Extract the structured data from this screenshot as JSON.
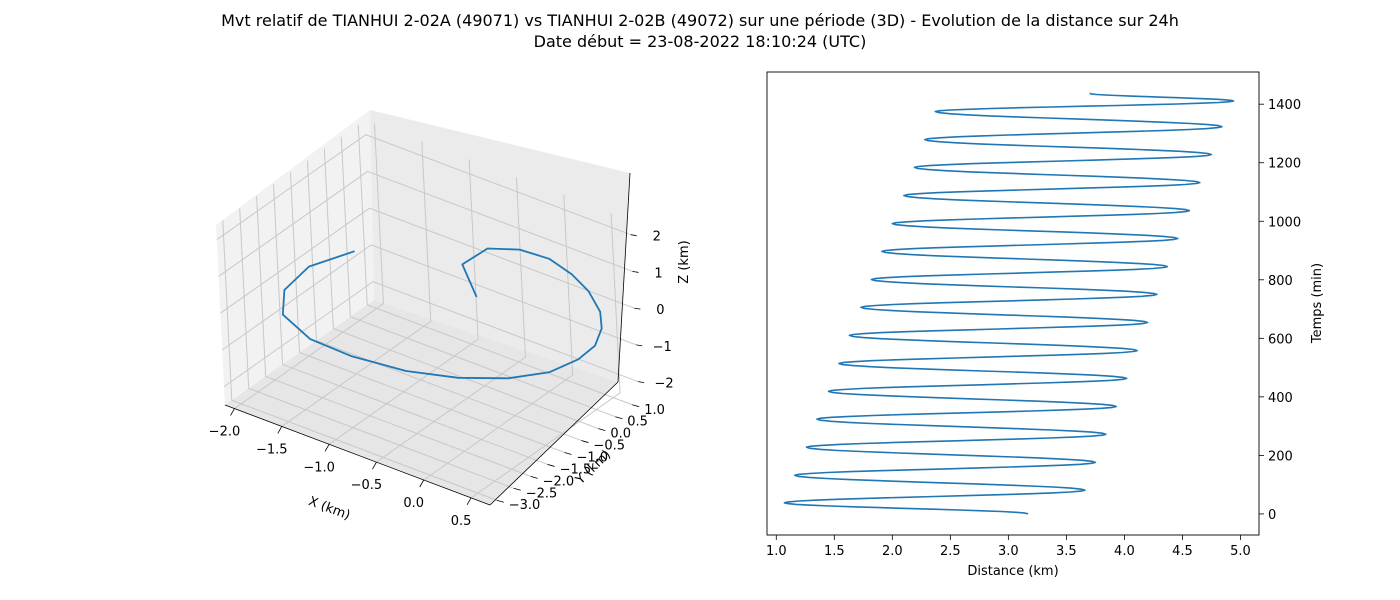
{
  "figure": {
    "title_line1": "Mvt relatif de TIANHUI 2-02A (49071) vs TIANHUI 2-02B (49072) sur une période (3D) - Evolution de la distance sur 24h",
    "title_line2": "Date début = 23-08-2022 18:10:24 (UTC)",
    "line_color": "#1f77b4"
  },
  "chart_data": [
    {
      "type": "line3d",
      "xlabel": "X (km)",
      "ylabel": "Y (km)",
      "zlabel": "Z (km)",
      "xticks": [
        "−2.0",
        "−1.5",
        "−1.0",
        "−0.5",
        "0.0",
        "0.5"
      ],
      "yticks": [
        "−3.0",
        "−2.5",
        "−2.0",
        "−1.5",
        "−1.0",
        "−0.5",
        "0.0",
        "0.5",
        "1.0"
      ],
      "zticks": [
        "−2",
        "−1",
        "0",
        "1",
        "2"
      ],
      "xlim": [
        -2.1,
        0.7
      ],
      "ylim": [
        -3.2,
        1.2
      ],
      "zlim": [
        -2.5,
        2.4
      ],
      "grid": true,
      "series": [
        {
          "points": [
            [
              -0.05,
              -1.3,
              1.2
            ],
            [
              -0.28,
              -1.05,
              1.7
            ],
            [
              -0.15,
              -0.65,
              2.0
            ],
            [
              0.1,
              -0.4,
              2.05
            ],
            [
              0.3,
              -0.1,
              1.8
            ],
            [
              0.42,
              0.2,
              1.3
            ],
            [
              0.48,
              0.5,
              0.7
            ],
            [
              0.5,
              0.75,
              0.0
            ],
            [
              0.45,
              0.9,
              -0.6
            ],
            [
              0.35,
              0.95,
              -1.2
            ],
            [
              0.2,
              0.85,
              -1.65
            ],
            [
              0.0,
              0.55,
              -2.0
            ],
            [
              -0.3,
              0.15,
              -2.2
            ],
            [
              -0.65,
              -0.35,
              -2.2
            ],
            [
              -1.0,
              -0.9,
              -2.0
            ],
            [
              -1.35,
              -1.5,
              -1.55
            ],
            [
              -1.6,
              -2.0,
              -1.0
            ],
            [
              -1.75,
              -2.35,
              -0.25
            ],
            [
              -1.7,
              -2.4,
              0.5
            ],
            [
              -1.5,
              -2.2,
              1.2
            ],
            [
              -1.15,
              -1.8,
              1.7
            ]
          ]
        }
      ]
    },
    {
      "type": "line",
      "xlabel": "Distance (km)",
      "ylabel": "Temps (min)",
      "xlim": [
        0.92,
        5.16
      ],
      "ylim": [
        -72,
        1510
      ],
      "xticks": [
        "1.0",
        "1.5",
        "2.0",
        "2.5",
        "3.0",
        "3.5",
        "4.0",
        "4.5",
        "5.0"
      ],
      "xtick_values": [
        1.0,
        1.5,
        2.0,
        2.5,
        3.0,
        3.5,
        4.0,
        4.5,
        5.0
      ],
      "yticks": [
        "0",
        "200",
        "400",
        "600",
        "800",
        "1000",
        "1200",
        "1400"
      ],
      "ytick_values": [
        0,
        200,
        400,
        600,
        800,
        1000,
        1200,
        1400
      ],
      "y_axis_side": "right",
      "series": [
        {
          "x": [
            3.17,
            1.07,
            3.66,
            1.16,
            3.75,
            1.26,
            3.84,
            1.35,
            3.93,
            1.45,
            4.02,
            1.54,
            4.11,
            1.63,
            4.2,
            1.73,
            4.28,
            1.82,
            4.37,
            1.91,
            4.46,
            2.0,
            4.56,
            2.1,
            4.65,
            2.19,
            4.75,
            2.28,
            4.84,
            2.37,
            4.94,
            3.7
          ],
          "y": [
            0,
            38,
            81,
            132,
            176,
            228,
            272,
            324,
            367,
            419,
            463,
            514,
            558,
            610,
            654,
            706,
            750,
            801,
            845,
            897,
            941,
            992,
            1036,
            1088,
            1132,
            1184,
            1228,
            1279,
            1323,
            1375,
            1411,
            1437
          ]
        }
      ]
    }
  ]
}
